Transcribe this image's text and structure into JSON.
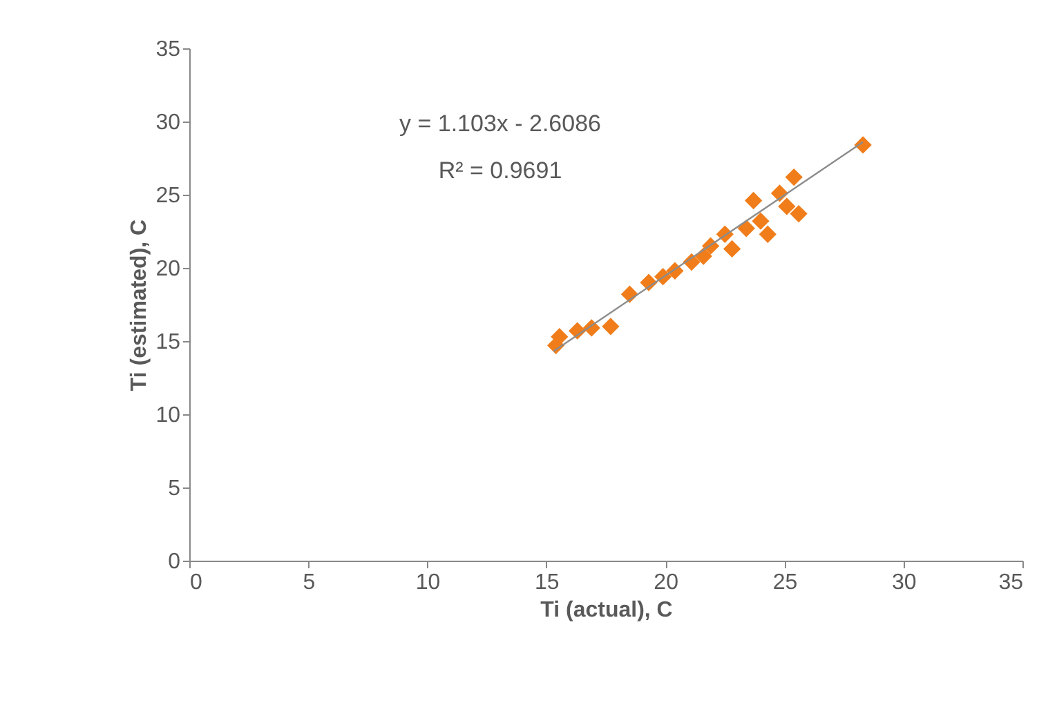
{
  "chart_data": {
    "type": "scatter",
    "xlabel": "Ti (actual), C",
    "ylabel": "Ti (estimated), C",
    "annotations": [
      "y = 1.103x - 2.6086",
      "R² = 0.9691"
    ],
    "xlim": [
      0,
      35
    ],
    "xticks": [
      0,
      5,
      10,
      15,
      20,
      25,
      30,
      35
    ],
    "ylim": [
      0,
      35
    ],
    "yticks": [
      0,
      5,
      10,
      15,
      20,
      25,
      30,
      35
    ],
    "series": [
      {
        "color": "#f07d1a",
        "marker": "diamond",
        "x": [
          15.4,
          15.55,
          16.3,
          16.9,
          17.7,
          18.5,
          19.3,
          19.9,
          20.4,
          21.1,
          21.6,
          21.9,
          22.5,
          22.8,
          23.4,
          23.7,
          24.0,
          24.3,
          24.8,
          25.1,
          25.4,
          25.6,
          28.3
        ],
        "values": [
          14.7,
          15.3,
          15.7,
          15.9,
          16.0,
          18.2,
          19.0,
          19.4,
          19.8,
          20.4,
          20.8,
          21.5,
          22.3,
          21.3,
          22.7,
          24.6,
          23.2,
          22.3,
          25.1,
          24.2,
          26.2,
          23.7,
          28.4
        ]
      },
      {
        "type": "line",
        "marker": "none",
        "color": "#8c8c8c",
        "x": [
          15.3,
          28.3
        ],
        "values": [
          14.3,
          28.6
        ]
      }
    ]
  }
}
